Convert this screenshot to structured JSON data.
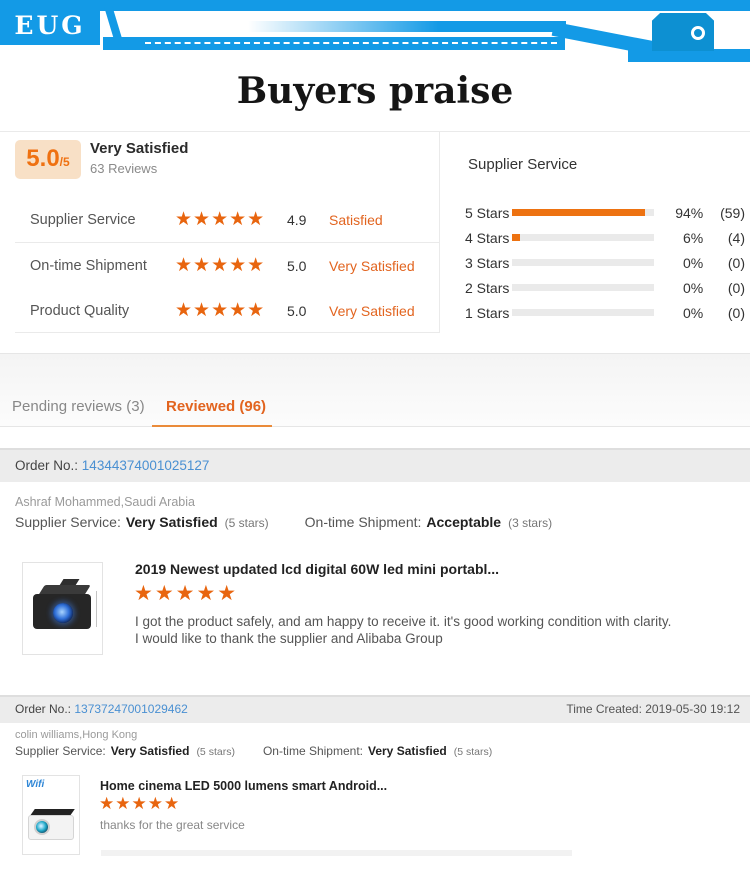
{
  "header": {
    "logo": "EUG"
  },
  "title": "Buyers praise",
  "colors": {
    "accent_orange": "#e8650f",
    "status_orange": "#e2641f",
    "header_blue": "#139ae6",
    "link_blue": "#4a90d2",
    "badge_bg": "#f8e0c6"
  },
  "summary": {
    "score": "5.0",
    "score_suffix": "/5",
    "verdict": "Very Satisfied",
    "reviews_count": "63 Reviews",
    "metrics": [
      {
        "label": "Supplier Service",
        "stars": "★★★★★",
        "score": "4.9",
        "status": "Satisfied"
      },
      {
        "label": "On-time Shipment",
        "stars": "★★★★★",
        "score": "5.0",
        "status": "Very Satisfied"
      },
      {
        "label": "Product Quality",
        "stars": "★★★★★",
        "score": "5.0",
        "status": "Very Satisfied"
      }
    ]
  },
  "breakdown": {
    "title": "Supplier Service",
    "rows": [
      {
        "label": "5 Stars",
        "value": 94,
        "percent": "94%",
        "count": "(59)"
      },
      {
        "label": "4 Stars",
        "value": 6,
        "percent": "6%",
        "count": "(4)"
      },
      {
        "label": "3 Stars",
        "value": 0,
        "percent": "0%",
        "count": "(0)"
      },
      {
        "label": "2 Stars",
        "value": 0,
        "percent": "0%",
        "count": "(0)"
      },
      {
        "label": "1 Stars",
        "value": 0,
        "percent": "0%",
        "count": "(0)"
      }
    ]
  },
  "tabs": {
    "pending": "Pending reviews (3)",
    "reviewed": "Reviewed (96)"
  },
  "reviews": [
    {
      "order_label": "Order No.:",
      "order_no": "14344374001025127",
      "reviewer": "Ashraf Mohammed,Saudi Arabia",
      "ss_label": "Supplier Service:",
      "ss_value": "Very Satisfied",
      "ss_stars": "(5 stars)",
      "ot_label": "On-time Shipment:",
      "ot_value": "Acceptable",
      "ot_stars": "(3 stars)",
      "product_title": "2019 Newest updated lcd digital 60W led mini portabl...",
      "stars": "★★★★★",
      "comment_line1": "I got the product safely, and am happy to receive it. it's good working condition with clarity.",
      "comment_line2": "I would like to thank the supplier and Alibaba Group"
    },
    {
      "order_label": "Order No.:",
      "order_no": "13737247001029462",
      "time_created": "Time Created: 2019-05-30 19:12",
      "reviewer": "colin williams,Hong Kong",
      "ss_label": "Supplier Service:",
      "ss_value": "Very Satisfied",
      "ss_stars": "(5 stars)",
      "ot_label": "On-time Shipment:",
      "ot_value": "Very Satisfied",
      "ot_stars": "(5 stars)",
      "product_title": "Home cinema LED 5000 lumens smart Android...",
      "stars": "★★★★★",
      "comment_line1": "thanks for the great service",
      "wifi_label": "Wifi"
    }
  ]
}
